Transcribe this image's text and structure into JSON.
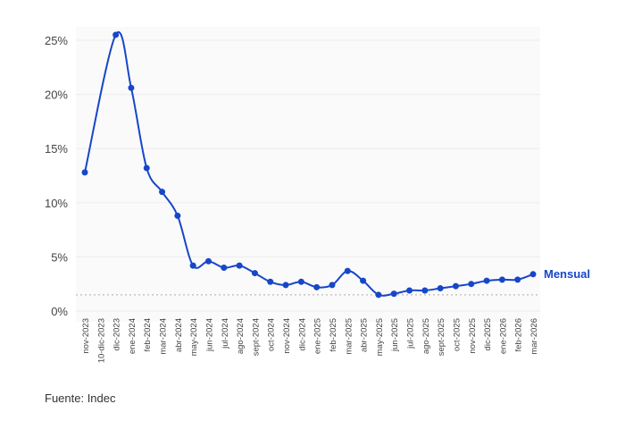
{
  "chart_data": {
    "type": "line",
    "categories": [
      "nov-2023",
      "10-dic-2023",
      "dic-2023",
      "ene-2024",
      "feb-2024",
      "mar-2024",
      "abr-2024",
      "may-2024",
      "jun-2024",
      "jul-2024",
      "ago-2024",
      "sept-2024",
      "oct-2024",
      "nov-2024",
      "dic-2024",
      "ene-2025",
      "feb-2025",
      "mar-2025",
      "abr-2025",
      "may-2025",
      "jun-2025",
      "jul-2025",
      "ago-2025",
      "sept-2025",
      "oct-2025",
      "nov-2025",
      "dic-2025",
      "ene-2026",
      "feb-2026",
      "mar-2026"
    ],
    "series": [
      {
        "name": "Mensual",
        "color": "#1746c8",
        "values": [
          12.8,
          null,
          25.5,
          20.6,
          13.2,
          11.0,
          8.8,
          4.2,
          4.6,
          4.0,
          4.2,
          3.5,
          2.7,
          2.4,
          2.7,
          2.2,
          2.4,
          3.7,
          2.8,
          1.5,
          1.6,
          1.9,
          1.9,
          2.1,
          2.3,
          2.5,
          2.8,
          2.9,
          2.9,
          3.4
        ]
      }
    ],
    "yticks": [
      "0%",
      "5%",
      "10%",
      "15%",
      "20%",
      "25%"
    ],
    "ylim": [
      0,
      25
    ],
    "reference_line": 1.5,
    "grid": true
  },
  "source": "Fuente: Indec"
}
